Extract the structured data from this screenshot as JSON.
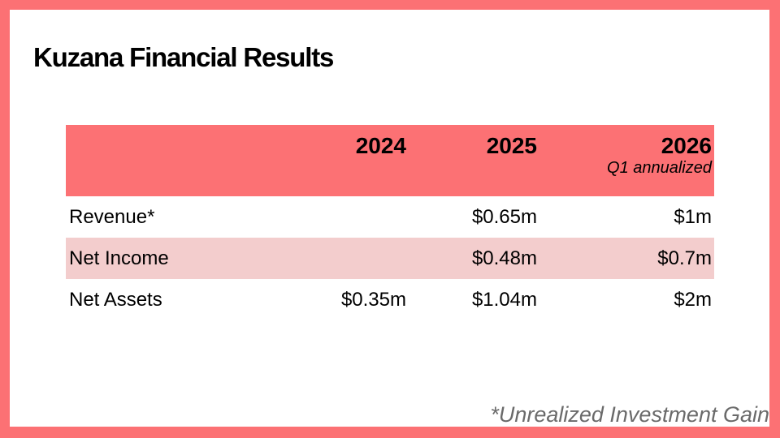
{
  "slide": {
    "title": "Kuzana Financial Results",
    "footnote": "*Unrealized Investment Gain"
  },
  "table": {
    "header": {
      "label": "",
      "y2024": "2024",
      "y2025": "2025",
      "y2026": "2026",
      "y2026_sub": "Q1 annualized"
    },
    "rows": [
      {
        "label": "Revenue*",
        "v2024": "",
        "v2025": "$0.65m",
        "v2026": "$1m"
      },
      {
        "label": "Net Income",
        "v2024": "",
        "v2025": "$0.48m",
        "v2026": "$0.7m"
      },
      {
        "label": "Net Assets",
        "v2024": "$0.35m",
        "v2025": "$1.04m",
        "v2026": "$2m"
      }
    ]
  },
  "colors": {
    "frame": "#FC7174",
    "header_bg": "#FC7174",
    "alt_row_bg": "#F3CDCD",
    "background": "#FFFFFF",
    "text": "#000000",
    "footnote_text": "#6A6A6A"
  }
}
